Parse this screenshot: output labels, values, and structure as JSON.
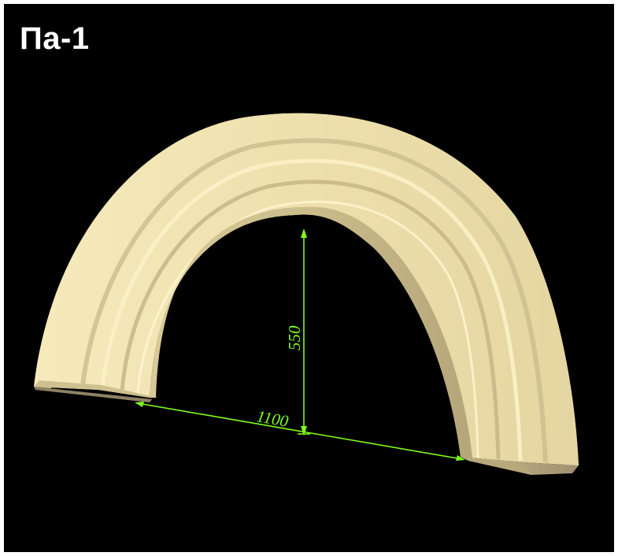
{
  "title": "Па-1",
  "dimensions": {
    "height_label": "550",
    "width_label": "1100"
  },
  "colors": {
    "background": "#000000",
    "border": "#ffffff",
    "title_text": "#ffffff",
    "arch_light": "#f2e5b4",
    "arch_mid": "#d6c797",
    "arch_shadow": "#a89972",
    "dimension_lines": "#7fff1f"
  }
}
